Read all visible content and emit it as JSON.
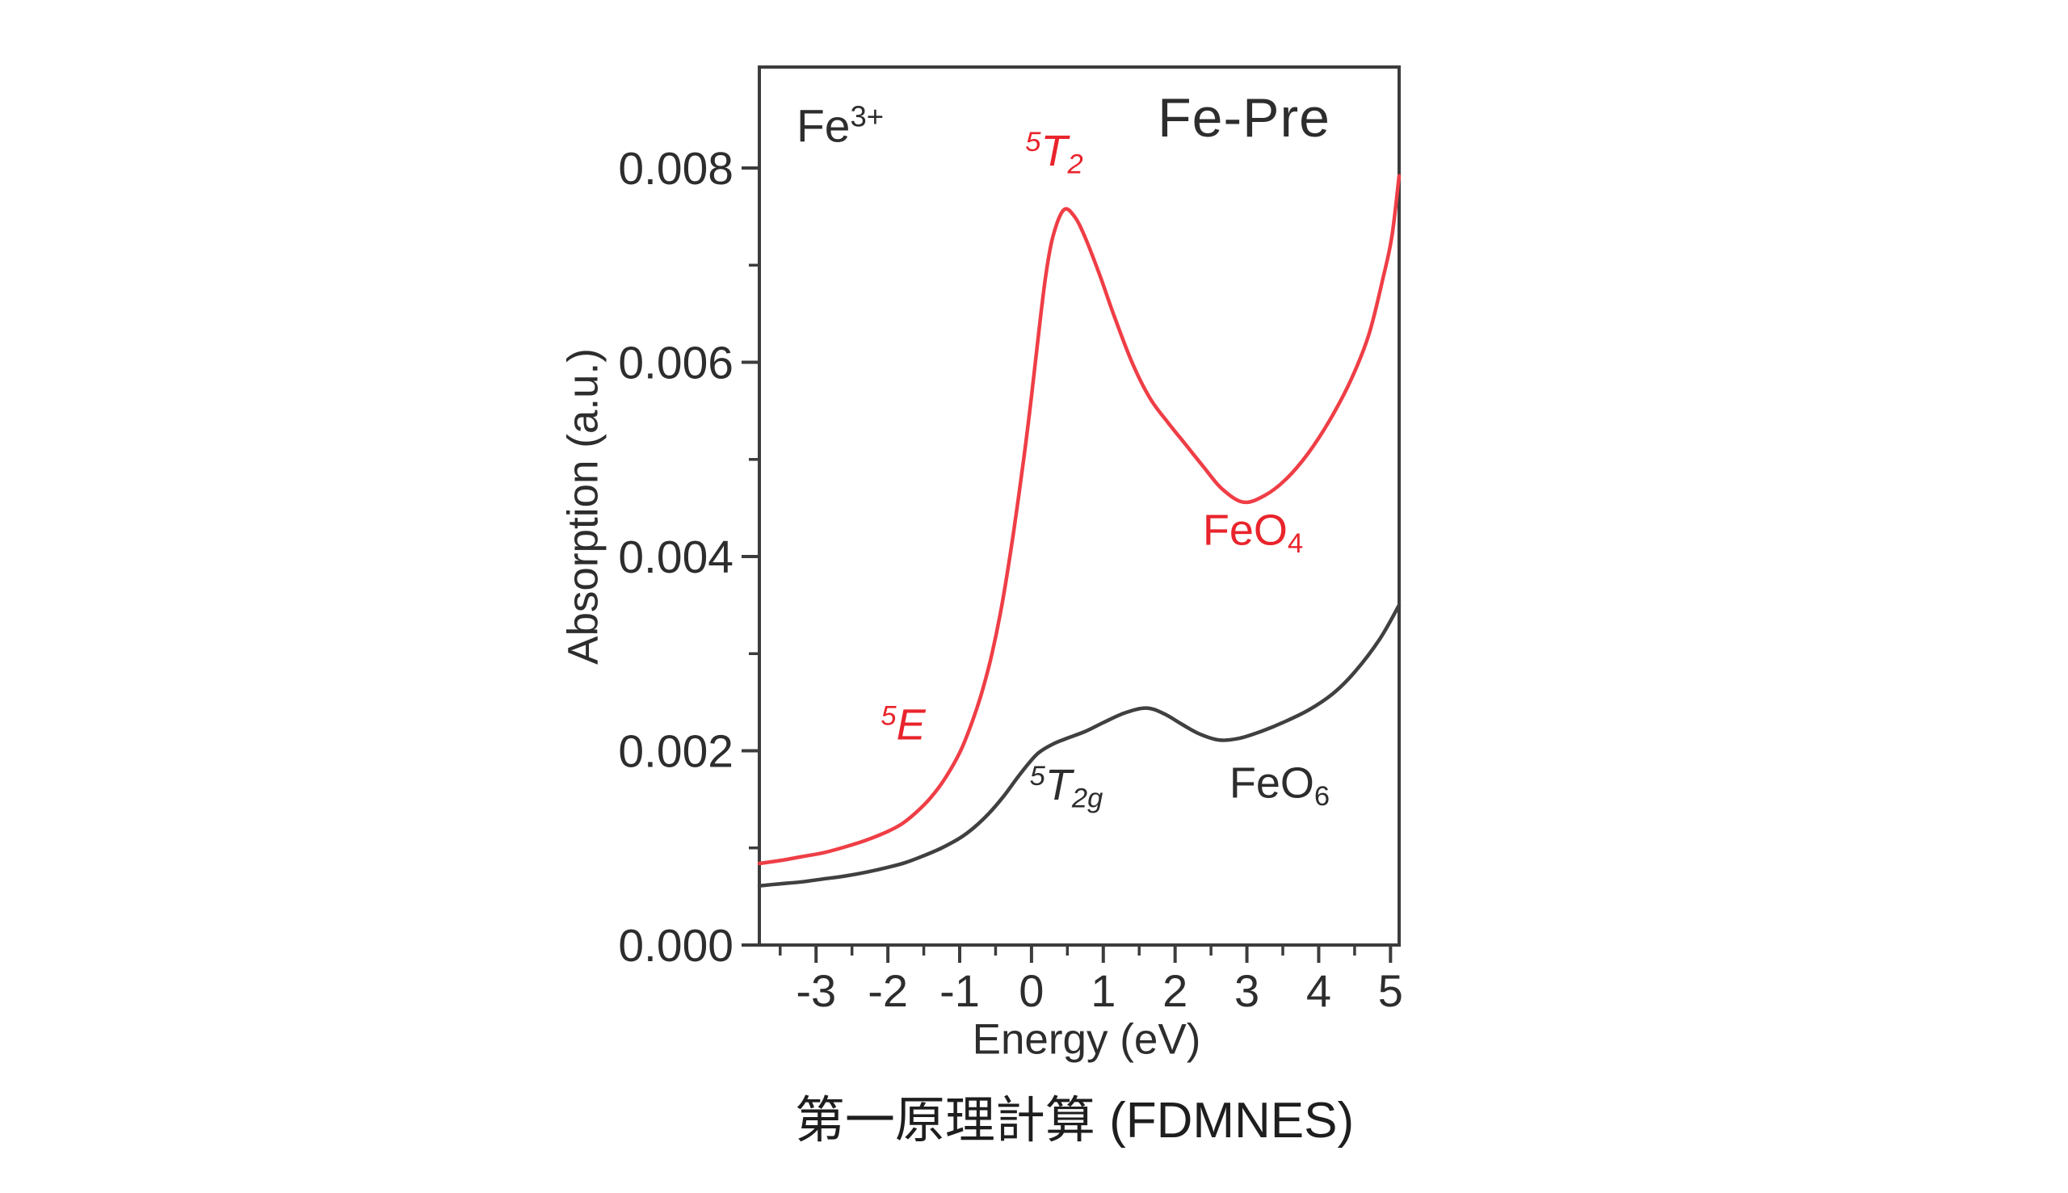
{
  "page": {
    "caption": "第一原理計算 (FDMNES)"
  },
  "chart_data": {
    "type": "line",
    "title": "Fe-Pre",
    "corner_label": {
      "base": "Fe",
      "sup": "3+"
    },
    "xlabel": "Energy (eV)",
    "ylabel": "Absorption (a.u.)",
    "xlim": [
      -3.79,
      5.12
    ],
    "ylim": [
      0,
      0.00904
    ],
    "grid": false,
    "frame_color": "#3c3c3c",
    "tick_color": "#3c3c3c",
    "x_ticks": [
      {
        "value": -3,
        "label": "-3"
      },
      {
        "value": -2,
        "label": "-2"
      },
      {
        "value": -1,
        "label": "-1"
      },
      {
        "value": 0,
        "label": "0"
      },
      {
        "value": 1,
        "label": "1"
      },
      {
        "value": 2,
        "label": "2"
      },
      {
        "value": 3,
        "label": "3"
      },
      {
        "value": 4,
        "label": "4"
      },
      {
        "value": 5,
        "label": "5"
      }
    ],
    "x_minor_ticks": [
      -3.5,
      -2.5,
      -1.5,
      -0.5,
      0.5,
      1.5,
      2.5,
      3.5,
      4.5
    ],
    "y_ticks": [
      {
        "value": 0.0,
        "label": "0.000"
      },
      {
        "value": 0.002,
        "label": "0.002"
      },
      {
        "value": 0.004,
        "label": "0.004"
      },
      {
        "value": 0.006,
        "label": "0.006"
      },
      {
        "value": 0.008,
        "label": "0.008"
      }
    ],
    "y_minor_ticks": [
      0.001,
      0.003,
      0.005,
      0.007
    ],
    "series": [
      {
        "name": "FeO4",
        "color": "#ef3e46",
        "points": [
          [
            -3.79,
            0.00084
          ],
          [
            -3.5,
            0.00087
          ],
          [
            -3.2,
            0.00091
          ],
          [
            -2.9,
            0.00095
          ],
          [
            -2.6,
            0.00101
          ],
          [
            -2.3,
            0.00108
          ],
          [
            -2.0,
            0.00117
          ],
          [
            -1.8,
            0.00125
          ],
          [
            -1.6,
            0.00137
          ],
          [
            -1.4,
            0.00152
          ],
          [
            -1.2,
            0.00172
          ],
          [
            -1.0,
            0.00198
          ],
          [
            -0.85,
            0.00225
          ],
          [
            -0.7,
            0.00258
          ],
          [
            -0.55,
            0.003
          ],
          [
            -0.4,
            0.00355
          ],
          [
            -0.25,
            0.00425
          ],
          [
            -0.1,
            0.00505
          ],
          [
            0.0,
            0.00565
          ],
          [
            0.1,
            0.0063
          ],
          [
            0.2,
            0.0069
          ],
          [
            0.3,
            0.0073
          ],
          [
            0.45,
            0.00757
          ],
          [
            0.6,
            0.0075
          ],
          [
            0.75,
            0.00728
          ],
          [
            0.95,
            0.0069
          ],
          [
            1.15,
            0.00648
          ],
          [
            1.4,
            0.006
          ],
          [
            1.65,
            0.00563
          ],
          [
            1.9,
            0.00538
          ],
          [
            2.15,
            0.00515
          ],
          [
            2.4,
            0.00492
          ],
          [
            2.65,
            0.0047
          ],
          [
            2.95,
            0.00456
          ],
          [
            3.25,
            0.00463
          ],
          [
            3.55,
            0.0048
          ],
          [
            3.85,
            0.00506
          ],
          [
            4.15,
            0.0054
          ],
          [
            4.45,
            0.00582
          ],
          [
            4.7,
            0.00629
          ],
          [
            4.9,
            0.00688
          ],
          [
            5.02,
            0.0073
          ],
          [
            5.12,
            0.00792
          ]
        ]
      },
      {
        "name": "FeO6",
        "color": "#404040",
        "points": [
          [
            -3.79,
            0.00061
          ],
          [
            -3.5,
            0.00063
          ],
          [
            -3.2,
            0.00065
          ],
          [
            -2.9,
            0.00068
          ],
          [
            -2.6,
            0.00071
          ],
          [
            -2.3,
            0.00075
          ],
          [
            -2.0,
            0.0008
          ],
          [
            -1.75,
            0.00085
          ],
          [
            -1.5,
            0.00092
          ],
          [
            -1.25,
            0.001
          ],
          [
            -1.0,
            0.0011
          ],
          [
            -0.8,
            0.00121
          ],
          [
            -0.6,
            0.00135
          ],
          [
            -0.4,
            0.00152
          ],
          [
            -0.2,
            0.00172
          ],
          [
            -0.05,
            0.00186
          ],
          [
            0.1,
            0.00198
          ],
          [
            0.3,
            0.00207
          ],
          [
            0.5,
            0.00213
          ],
          [
            0.75,
            0.0022
          ],
          [
            1.0,
            0.00229
          ],
          [
            1.3,
            0.00239
          ],
          [
            1.6,
            0.00244
          ],
          [
            1.85,
            0.00238
          ],
          [
            2.1,
            0.00227
          ],
          [
            2.35,
            0.00217
          ],
          [
            2.62,
            0.00211
          ],
          [
            2.9,
            0.00213
          ],
          [
            3.2,
            0.0022
          ],
          [
            3.5,
            0.00229
          ],
          [
            3.86,
            0.00242
          ],
          [
            4.2,
            0.00259
          ],
          [
            4.5,
            0.00281
          ],
          [
            4.85,
            0.00315
          ],
          [
            5.12,
            0.0035
          ]
        ]
      }
    ],
    "annotations": {
      "t2": {
        "sup": "5",
        "base": "T",
        "sub": "2",
        "color": "#e9242c"
      },
      "e": {
        "sup": "5",
        "base": "E",
        "sub": "",
        "color": "#e9242c"
      },
      "feo4": {
        "base": "FeO",
        "sub": "4",
        "color": "#e9242c"
      },
      "t2g": {
        "sup": "5",
        "base": "T",
        "sub": "2g",
        "color": "#3a3a3a"
      },
      "feo6": {
        "base": "FeO",
        "sub": "6",
        "color": "#3a3a3a"
      }
    }
  }
}
